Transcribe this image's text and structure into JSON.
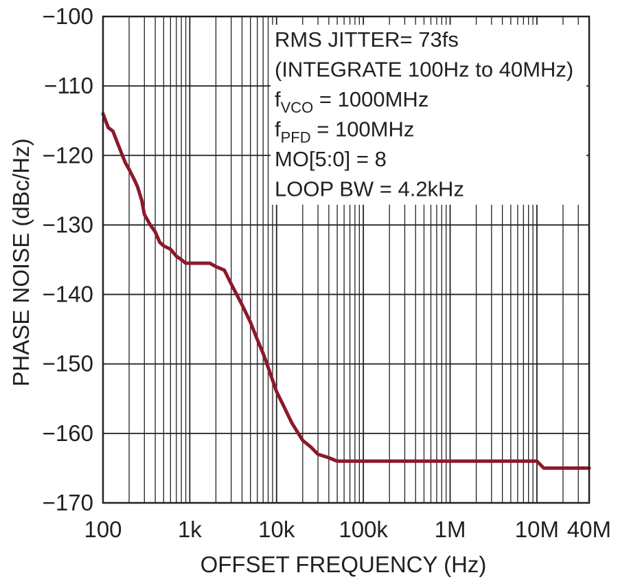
{
  "chart_data": {
    "type": "line",
    "x_scale": "log",
    "xlim": [
      100,
      40000000
    ],
    "ylim": [
      -170,
      -100
    ],
    "xlabel": "OFFSET FREQUENCY (Hz)",
    "ylabel": "PHASE NOISE (dBc/Hz)",
    "grid": true,
    "x_ticks": [
      {
        "value": 100,
        "label": "100"
      },
      {
        "value": 1000,
        "label": "1k"
      },
      {
        "value": 10000,
        "label": "10k"
      },
      {
        "value": 100000,
        "label": "100k"
      },
      {
        "value": 1000000,
        "label": "1M"
      },
      {
        "value": 10000000,
        "label": "10M"
      },
      {
        "value": 40000000,
        "label": "40M"
      }
    ],
    "y_ticks": [
      {
        "value": -100,
        "label": "−100"
      },
      {
        "value": -110,
        "label": "−110"
      },
      {
        "value": -120,
        "label": "−120"
      },
      {
        "value": -130,
        "label": "−130"
      },
      {
        "value": -140,
        "label": "−140"
      },
      {
        "value": -150,
        "label": "−150"
      },
      {
        "value": -160,
        "label": "−160"
      },
      {
        "value": -170,
        "label": "−170"
      }
    ],
    "annotation": {
      "lines": [
        {
          "text": "RMS JITTER= 73fs"
        },
        {
          "text": "(INTEGRATE 100Hz to 40MHz)"
        },
        {
          "prefix": "f",
          "sub": "VCO",
          "suffix": " = 1000MHz"
        },
        {
          "prefix": "f",
          "sub": "PFD",
          "suffix": " = 100MHz"
        },
        {
          "text": "MO[5:0]  = 8"
        },
        {
          "text": "LOOP BW = 4.2kHz"
        }
      ]
    },
    "series": [
      {
        "color": "#8b1a2b",
        "points": [
          [
            100,
            -114
          ],
          [
            115,
            -116
          ],
          [
            130,
            -116.5
          ],
          [
            150,
            -118.5
          ],
          [
            180,
            -121
          ],
          [
            200,
            -122
          ],
          [
            230,
            -123.5
          ],
          [
            250,
            -124.5
          ],
          [
            280,
            -126.5
          ],
          [
            300,
            -128.5
          ],
          [
            350,
            -130
          ],
          [
            400,
            -131
          ],
          [
            450,
            -132.5
          ],
          [
            500,
            -133
          ],
          [
            600,
            -133.5
          ],
          [
            700,
            -134.5
          ],
          [
            800,
            -135
          ],
          [
            900,
            -135.5
          ],
          [
            1000,
            -135.5
          ],
          [
            1300,
            -135.5
          ],
          [
            1700,
            -135.5
          ],
          [
            2000,
            -136
          ],
          [
            2500,
            -136.5
          ],
          [
            3000,
            -138.5
          ],
          [
            4000,
            -141.5
          ],
          [
            5000,
            -144
          ],
          [
            6000,
            -146.5
          ],
          [
            7000,
            -148.5
          ],
          [
            8000,
            -150.5
          ],
          [
            10000,
            -154
          ],
          [
            12000,
            -156
          ],
          [
            15000,
            -158.5
          ],
          [
            20000,
            -161
          ],
          [
            25000,
            -162
          ],
          [
            30000,
            -163
          ],
          [
            40000,
            -163.5
          ],
          [
            50000,
            -164
          ],
          [
            70000,
            -164
          ],
          [
            100000,
            -164
          ],
          [
            300000,
            -164
          ],
          [
            1000000,
            -164
          ],
          [
            3000000,
            -164
          ],
          [
            10000000,
            -164
          ],
          [
            12000000,
            -165
          ],
          [
            20000000,
            -165
          ],
          [
            30000000,
            -165
          ],
          [
            40000000,
            -165
          ]
        ]
      }
    ]
  }
}
